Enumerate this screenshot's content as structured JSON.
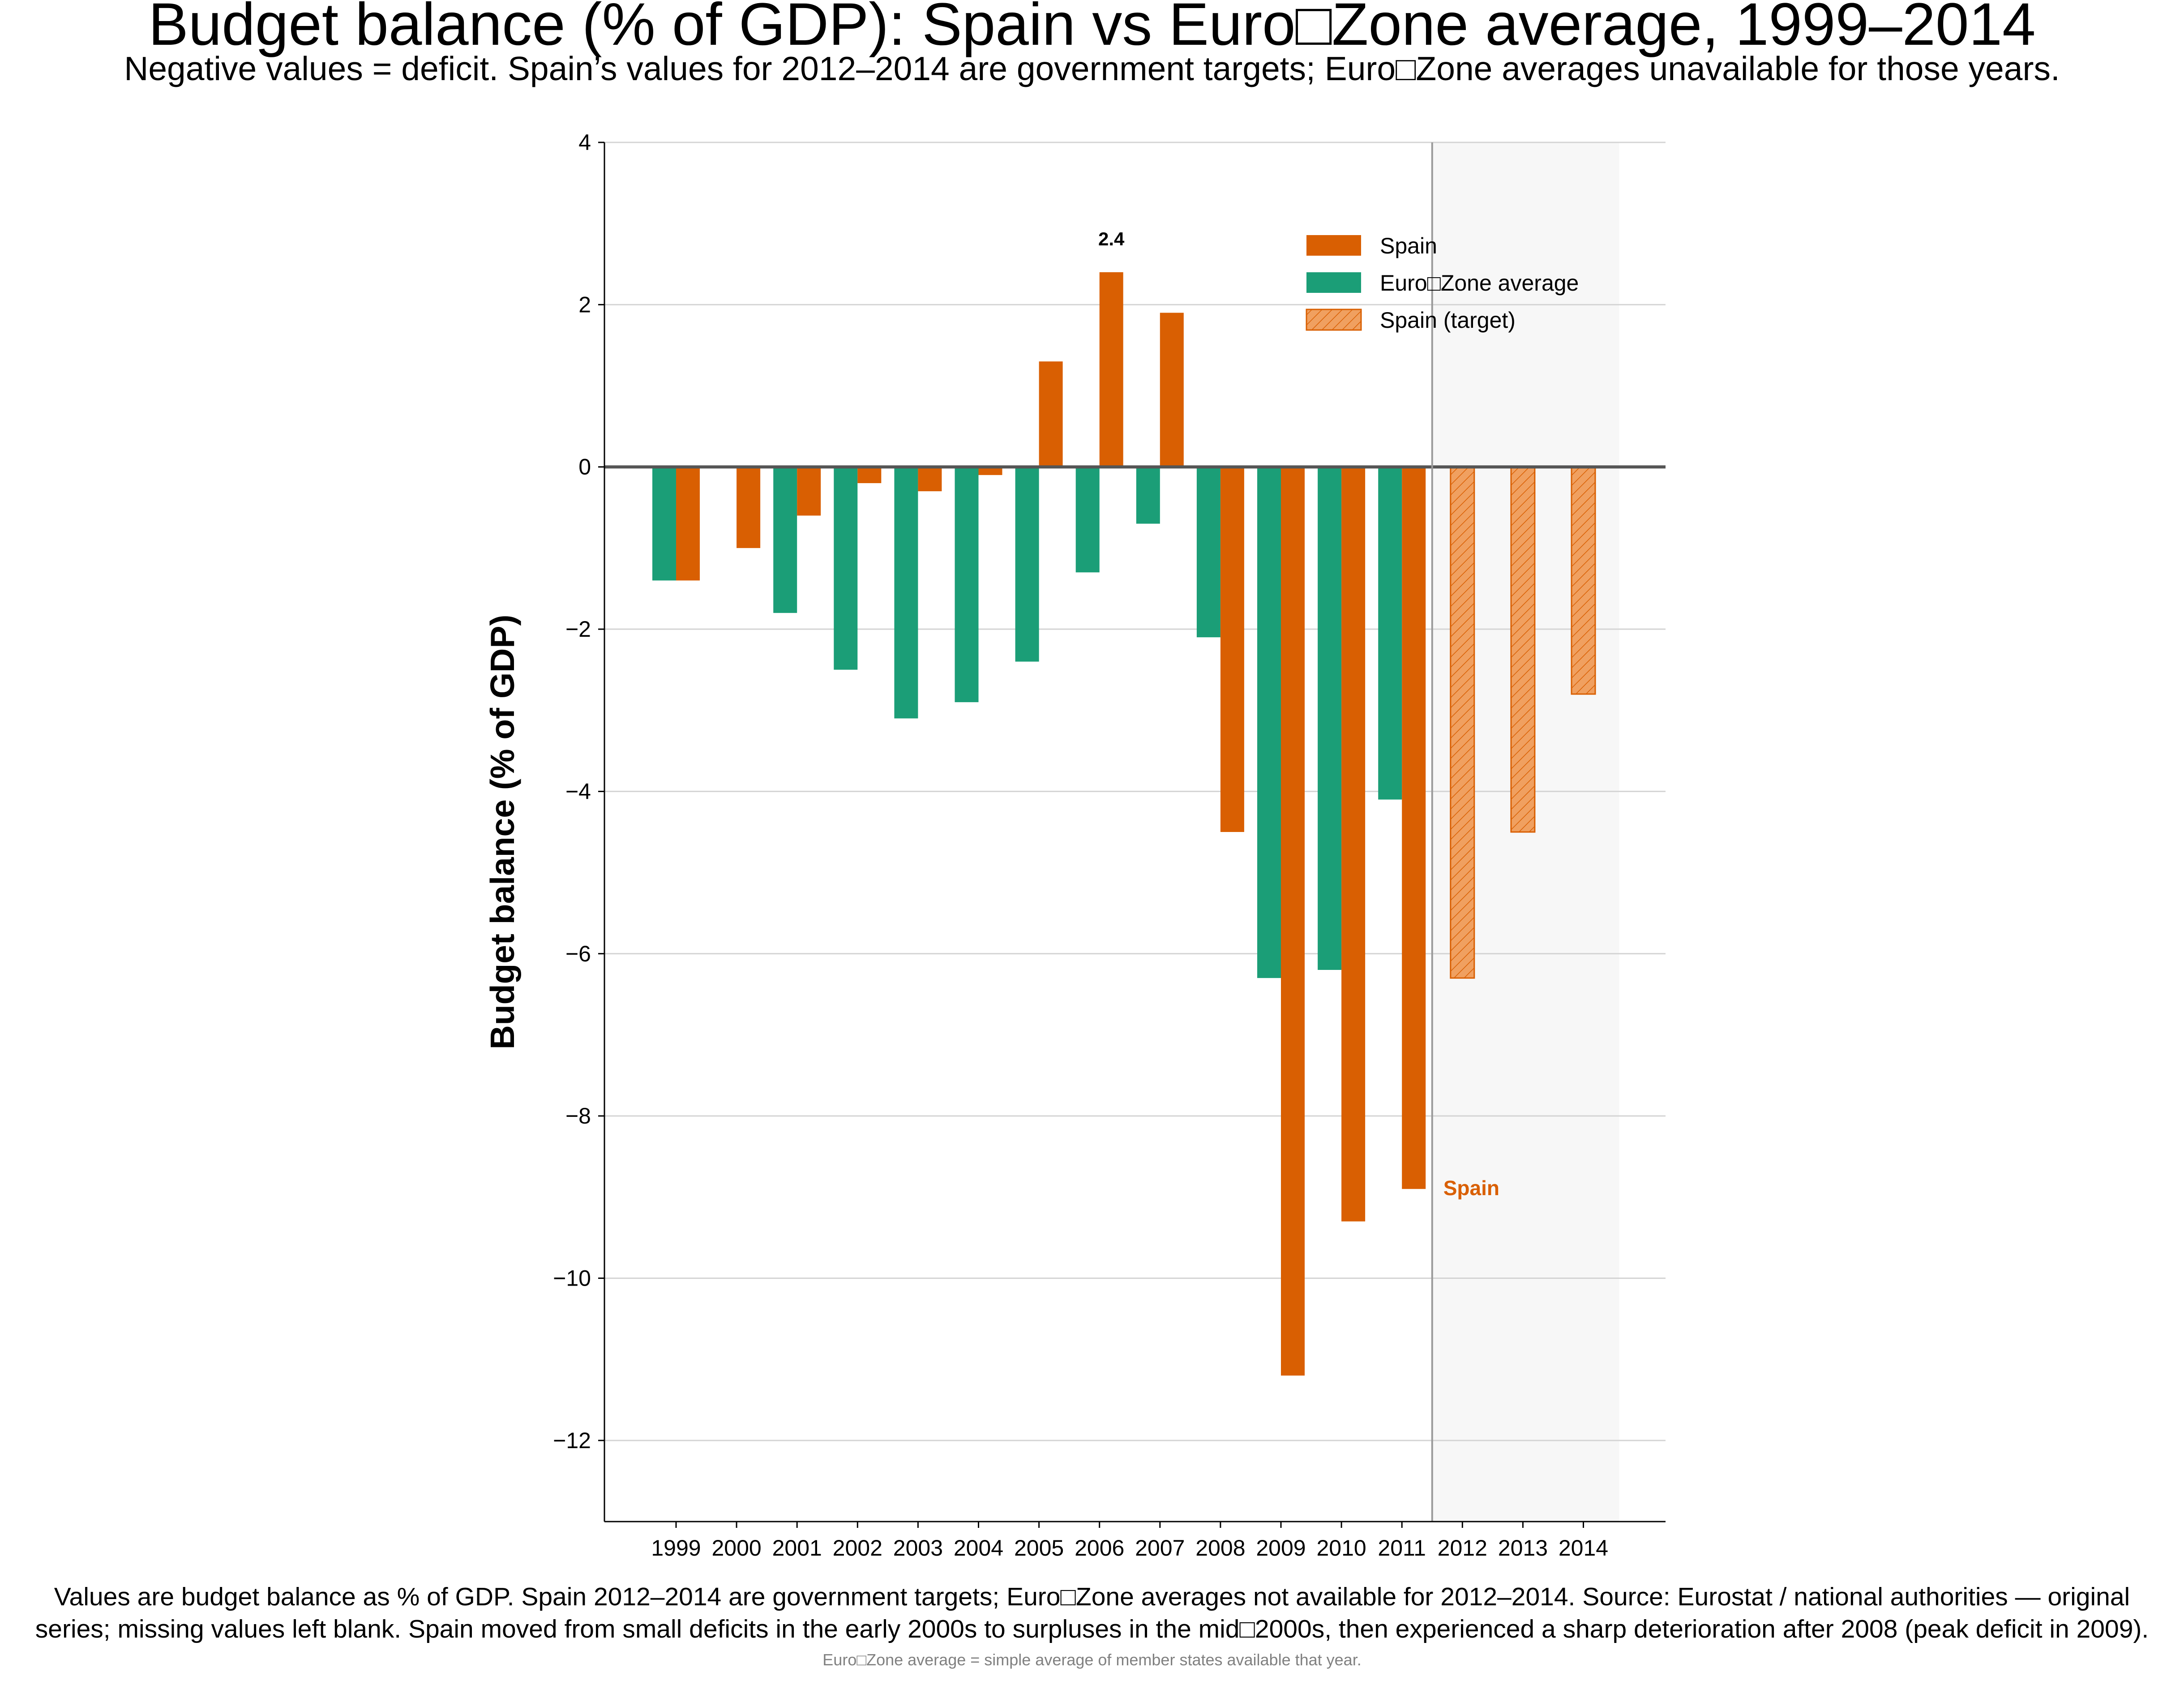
{
  "title": "Budget balance (% of GDP): Spain vs Euro□Zone average, 1999–2014",
  "subtitle": "Negative values = deficit. Spain’s values for 2012–2014 are government targets; Euro□Zone averages unavailable for those years.",
  "footnote_line1": "Values are budget balance as % of GDP. Spain 2012–2014 are government targets; Euro□Zone averages not available for 2012–2014. Source: Eurostat / national authorities — original",
  "footnote_line2": "series; missing values left blank. Spain moved from small deficits in the early 2000s to surpluses in the mid□2000s, then experienced a sharp deterioration after 2008 (peak deficit in 2009).",
  "subnote": "Euro□Zone average = simple average of member states available that year.",
  "chart_data": {
    "type": "bar",
    "title": "Budget balance (% of GDP): Spain vs Euro□Zone average, 1999–2014",
    "xlabel": "",
    "ylabel": "Budget balance (% of GDP)",
    "ylim": [
      -13,
      4
    ],
    "yticks": [
      4,
      2,
      0,
      -2,
      -4,
      -6,
      -8,
      -10,
      -12
    ],
    "ytick_labels": [
      "4",
      "2",
      "0",
      "−2",
      "−4",
      "−6",
      "−8",
      "−10",
      "−12"
    ],
    "categories": [
      "1999",
      "2000",
      "2001",
      "2002",
      "2003",
      "2004",
      "2005",
      "2006",
      "2007",
      "2008",
      "2009",
      "2010",
      "2011",
      "2012",
      "2013",
      "2014"
    ],
    "grid": "horizontal",
    "legend_position": "top-right",
    "target_region": [
      "2012",
      "2014"
    ],
    "series": [
      {
        "name": "Spain",
        "color": "#d95f02",
        "values": [
          -1.4,
          -1.0,
          -0.6,
          -0.2,
          -0.3,
          -0.1,
          1.3,
          2.4,
          1.9,
          -4.5,
          -11.2,
          -9.3,
          -8.9,
          null,
          null,
          null
        ]
      },
      {
        "name": "Euro□Zone average",
        "color": "#1b9e77",
        "values": [
          -1.4,
          null,
          -1.8,
          -2.5,
          -3.1,
          -2.9,
          -2.4,
          -1.3,
          -0.7,
          -2.1,
          -6.3,
          -6.2,
          -4.1,
          null,
          null,
          null
        ]
      },
      {
        "name": "Spain (target)",
        "color": "#f0a060",
        "edge_color": "#d95f02",
        "pattern": "hatched",
        "values": [
          null,
          null,
          null,
          null,
          null,
          null,
          null,
          null,
          null,
          null,
          null,
          null,
          null,
          -6.3,
          -4.5,
          -2.8
        ]
      }
    ],
    "annotations": [
      {
        "text": "2.4",
        "category": "2006",
        "series": "Spain",
        "value": 2.4
      },
      {
        "text": "Spain",
        "category": "2011",
        "series": "Spain",
        "value": -8.9,
        "color": "#d95f02"
      }
    ]
  }
}
